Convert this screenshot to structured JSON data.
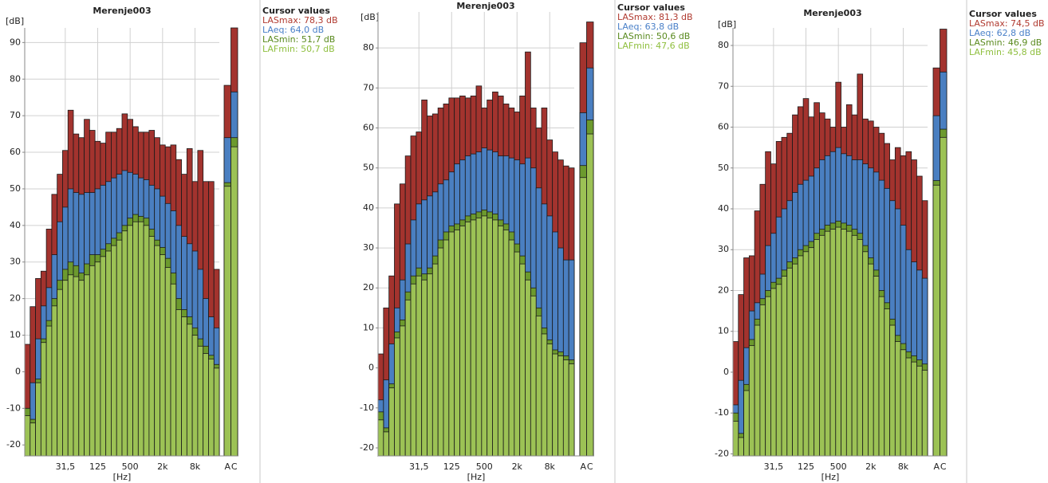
{
  "chart_data": [
    {
      "type": "bar",
      "title": "Merenje003",
      "y_label": "[dB]",
      "x_label": "[Hz]",
      "legend_title": "Cursor values",
      "categories": [
        null,
        null,
        null,
        null,
        null,
        null,
        null,
        "31,5",
        null,
        null,
        null,
        null,
        null,
        "125",
        null,
        null,
        null,
        null,
        null,
        "500",
        null,
        null,
        null,
        null,
        null,
        "2k",
        null,
        null,
        null,
        null,
        null,
        "8k",
        null,
        null,
        null,
        null
      ],
      "overall_categories": [
        "A",
        "C"
      ],
      "ylim": [
        -23,
        94
      ],
      "yticks": [
        -20,
        -10,
        0,
        10,
        20,
        30,
        40,
        50,
        60,
        70,
        80,
        90
      ],
      "grid": true,
      "series": [
        {
          "name": "LASmax: 78,3 dB",
          "color": "#a3332e",
          "legend_color": "#b03a30",
          "values": [
            7.5,
            17.8,
            25.5,
            27.5,
            39,
            48.5,
            54,
            60.5,
            71.5,
            65,
            64,
            69,
            66,
            63,
            62.5,
            65.5,
            65.5,
            66.5,
            70.5,
            69,
            67,
            65.5,
            65.5,
            66,
            64,
            62,
            61.5,
            62,
            58,
            54,
            61,
            52,
            60.5,
            52,
            52,
            28
          ],
          "overall_values": [
            78.3,
            94
          ]
        },
        {
          "name": "LAeq: 64,0 dB",
          "color": "#4a7fc1",
          "legend_color": "#4a80c8",
          "values": [
            -10,
            -3,
            9,
            18,
            23,
            32,
            41,
            45,
            50,
            49,
            48.5,
            49,
            49,
            50,
            51,
            52,
            53,
            54,
            55,
            54.5,
            54,
            53,
            52.5,
            51,
            50,
            48,
            46,
            44,
            40,
            37,
            35,
            33,
            28,
            20,
            15,
            12
          ],
          "overall_values": [
            64.0,
            76.5
          ]
        },
        {
          "name": "LASmin: 51,7 dB",
          "color": "#6c9a2e",
          "legend_color": "#5a8a1f",
          "values": [
            -10,
            -13,
            -2,
            9,
            14,
            20,
            25,
            28,
            30,
            29,
            27,
            29.5,
            32,
            32,
            33.5,
            35,
            36.5,
            38,
            40,
            42,
            43,
            42.5,
            42,
            39,
            36,
            34,
            31,
            27,
            20,
            17,
            15,
            12,
            9,
            7,
            4.5,
            2
          ],
          "overall_values": [
            51.7,
            64
          ]
        },
        {
          "name": "LAFmin: 50,7 dB",
          "color": "#9cc255",
          "legend_color": "#8fbf3f",
          "values": [
            -12,
            -14,
            -3,
            8,
            12.5,
            18,
            22.5,
            25,
            26.5,
            26,
            25,
            26.5,
            29,
            30,
            31.5,
            33,
            34.5,
            36,
            38.5,
            40,
            41,
            41,
            40,
            37,
            34.5,
            32,
            28.5,
            24,
            17,
            15,
            13,
            10,
            7,
            5,
            3.5,
            1
          ],
          "overall_values": [
            50.7,
            61.5
          ]
        }
      ]
    },
    {
      "type": "bar",
      "title": "Merenje003",
      "y_label": "[dB]",
      "x_label": "[Hz]",
      "legend_title": "Cursor values",
      "categories": [
        null,
        null,
        null,
        null,
        null,
        null,
        null,
        "31,5",
        null,
        null,
        null,
        null,
        null,
        "125",
        null,
        null,
        null,
        null,
        null,
        "500",
        null,
        null,
        null,
        null,
        null,
        "2k",
        null,
        null,
        null,
        null,
        null,
        "8k",
        null,
        null,
        null,
        null
      ],
      "overall_categories": [
        "A",
        "C"
      ],
      "ylim": [
        -22,
        89
      ],
      "yticks": [
        -20,
        -10,
        0,
        10,
        20,
        30,
        40,
        50,
        60,
        70,
        80
      ],
      "grid": true,
      "series": [
        {
          "name": "LASmax: 81,3 dB",
          "color": "#a3332e",
          "legend_color": "#b03a30",
          "values": [
            3.5,
            15,
            23,
            41,
            46,
            53,
            58,
            59,
            67,
            63,
            63.5,
            65,
            66,
            67.5,
            67.5,
            68,
            67.5,
            68,
            70.5,
            65,
            67,
            69,
            68,
            66,
            65,
            64,
            68,
            79,
            65,
            60,
            65,
            57,
            54,
            52,
            50.5,
            50
          ],
          "overall_values": [
            81.3,
            86.5
          ]
        },
        {
          "name": "LAeq: 63,8 dB",
          "color": "#4a7fc1",
          "legend_color": "#4a80c8",
          "values": [
            -8,
            -3,
            6,
            15,
            22,
            31,
            37,
            41,
            42,
            43,
            44,
            46,
            47,
            49,
            51,
            52,
            53,
            53.5,
            54,
            55,
            54.5,
            54,
            53,
            53,
            52.5,
            52,
            51,
            52.5,
            50,
            45,
            41,
            38,
            34,
            30,
            27,
            27
          ],
          "overall_values": [
            63.8,
            75
          ]
        },
        {
          "name": "LASmin: 50,6 dB",
          "color": "#6c9a2e",
          "legend_color": "#5a8a1f",
          "values": [
            -11,
            -15,
            -4,
            9,
            12,
            19,
            23,
            25,
            23.5,
            25,
            28,
            32,
            34,
            35.5,
            36,
            37,
            38,
            38.5,
            39,
            39.5,
            39,
            38.5,
            37,
            36,
            34,
            31,
            28,
            24,
            20,
            15,
            10,
            7,
            4.5,
            4,
            3,
            2
          ],
          "overall_values": [
            50.6,
            62
          ]
        },
        {
          "name": "LAFmin: 47,6 dB",
          "color": "#9cc255",
          "legend_color": "#8fbf3f",
          "values": [
            -13,
            -16,
            -5,
            7.5,
            10.5,
            17,
            21,
            23,
            22,
            23.5,
            26,
            30,
            32,
            34,
            34.5,
            35.5,
            36.5,
            37,
            37.5,
            38,
            37.5,
            37,
            35.5,
            34.5,
            32,
            29,
            26,
            22,
            18,
            13,
            8.5,
            6,
            3.5,
            3,
            2,
            1
          ],
          "overall_values": [
            47.6,
            58.5
          ]
        }
      ]
    },
    {
      "type": "bar",
      "title": "Merenje003",
      "y_label": "[dB]",
      "x_label": "[Hz]",
      "legend_title": "Cursor values",
      "categories": [
        null,
        null,
        null,
        null,
        null,
        null,
        null,
        "31,5",
        null,
        null,
        null,
        null,
        null,
        "125",
        null,
        null,
        null,
        null,
        null,
        "500",
        null,
        null,
        null,
        null,
        null,
        "2k",
        null,
        null,
        null,
        null,
        null,
        "8k",
        null,
        null,
        null,
        null
      ],
      "overall_categories": [
        "A",
        "C"
      ],
      "ylim": [
        -20.5,
        84.3
      ],
      "yticks": [
        -20,
        -10,
        0,
        10,
        20,
        30,
        40,
        50,
        60,
        70,
        80
      ],
      "grid": true,
      "series": [
        {
          "name": "LASmax: 74,5 dB",
          "color": "#a3332e",
          "legend_color": "#b03a30",
          "values": [
            7.5,
            19,
            28,
            28.5,
            39.5,
            46,
            54,
            51,
            56.5,
            57.5,
            58.5,
            63,
            65,
            67,
            62.5,
            66,
            63.5,
            62,
            60,
            71,
            60,
            65.5,
            63,
            73,
            62,
            61.5,
            60,
            58.5,
            56,
            52,
            55,
            53,
            54,
            52,
            48,
            42
          ],
          "overall_values": [
            74.5,
            84
          ]
        },
        {
          "name": "LAeq: 62,8 dB",
          "color": "#4a7fc1",
          "legend_color": "#4a80c8",
          "values": [
            -8,
            -2,
            6,
            15,
            17,
            24,
            31,
            34,
            38,
            40,
            42,
            44,
            46,
            47,
            48,
            50,
            52,
            53,
            54,
            55,
            53.5,
            53,
            52,
            52,
            51,
            50,
            49,
            47,
            45,
            42,
            40,
            36,
            30,
            27,
            25,
            23
          ],
          "overall_values": [
            62.8,
            73.5
          ]
        },
        {
          "name": "LASmin: 46,9 dB",
          "color": "#6c9a2e",
          "legend_color": "#5a8a1f",
          "values": [
            -10,
            -15,
            -3,
            8,
            13,
            18,
            20,
            22,
            23,
            25,
            27,
            28,
            30,
            31,
            32,
            34,
            35,
            36,
            36.5,
            37,
            36.5,
            36,
            35,
            34,
            31,
            28,
            25,
            20,
            17,
            13,
            9,
            7,
            5,
            4,
            3,
            2
          ],
          "overall_values": [
            46.9,
            59.5
          ]
        },
        {
          "name": "LAFmin: 45,8 dB",
          "color": "#9cc255",
          "legend_color": "#8fbf3f",
          "values": [
            -12,
            -16,
            -4.5,
            6.5,
            11.5,
            16.5,
            18.5,
            20.5,
            21.5,
            23.5,
            25.5,
            26.5,
            28.5,
            29.5,
            30.5,
            32.5,
            33.5,
            34.5,
            35,
            35.5,
            35,
            34.5,
            33.5,
            32.5,
            29.5,
            26.5,
            23.5,
            18.5,
            15.5,
            11.5,
            7.5,
            5.5,
            3.5,
            2.5,
            1.5,
            0.5
          ],
          "overall_values": [
            45.8,
            57.5
          ]
        }
      ]
    }
  ]
}
